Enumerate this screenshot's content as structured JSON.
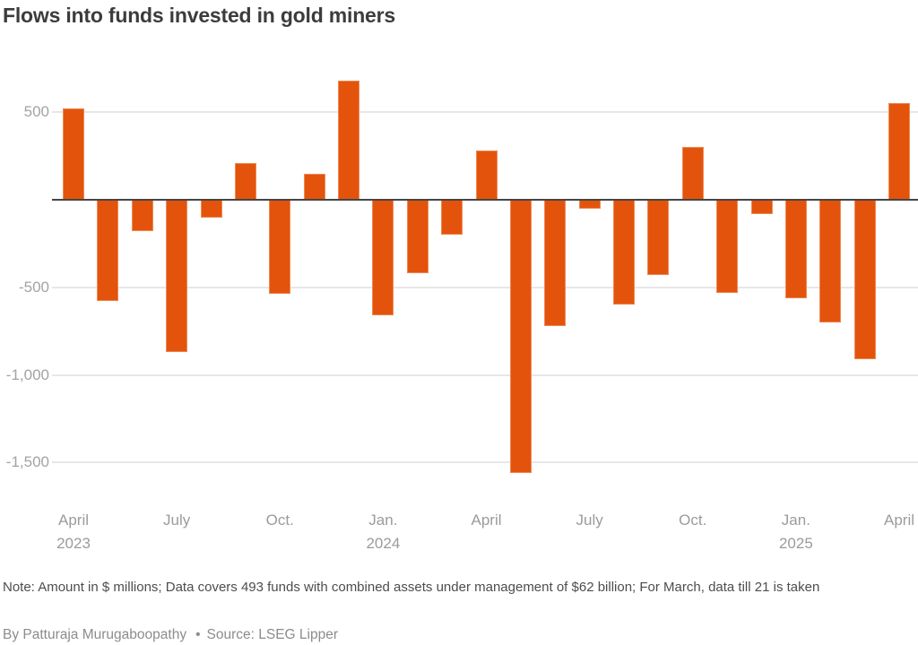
{
  "title": "Flows into funds invested in gold miners",
  "note": "Note: Amount in $ millions; Data covers 493 funds with combined assets under management of $62 billion; For March, data till 21 is taken",
  "credit": {
    "byline": "By Patturaja Murugaboopathy",
    "separator": "•",
    "source": "Source: LSEG Lipper"
  },
  "colors": {
    "bar": "#e4530c",
    "zero_line": "#454545",
    "gridline": "#e7e7e7",
    "title_text": "#3c3c3c",
    "tick_text": "#a3a3a3",
    "note_text": "#4d4d4d",
    "credit_text": "#8c8c8c"
  },
  "chart_data": {
    "type": "bar",
    "title": "Flows into funds invested in gold miners",
    "unit": "$ millions",
    "xlabel": "",
    "ylabel": "",
    "ylim": [
      -1700,
      750
    ],
    "grid": true,
    "legend": false,
    "zero_line": true,
    "categories": [
      "Apr 2023",
      "May 2023",
      "Jun 2023",
      "Jul 2023",
      "Aug 2023",
      "Sep 2023",
      "Oct 2023",
      "Nov 2023",
      "Dec 2023",
      "Jan 2024",
      "Feb 2024",
      "Mar 2024",
      "Apr 2024",
      "May 2024",
      "Jun 2024",
      "Jul 2024",
      "Aug 2024",
      "Sep 2024",
      "Oct 2024",
      "Nov 2024",
      "Dec 2024",
      "Jan 2025",
      "Feb 2025",
      "Mar 2025",
      "Apr 2025"
    ],
    "values": [
      520,
      -580,
      -180,
      -870,
      -100,
      210,
      -535,
      150,
      680,
      -660,
      -420,
      -200,
      280,
      -1560,
      -720,
      -50,
      -600,
      -430,
      300,
      -530,
      -80,
      -560,
      -700,
      -910,
      550
    ],
    "yticks": [
      {
        "value": 500,
        "label": "500"
      },
      {
        "value": -500,
        "label": "-500"
      },
      {
        "value": -1000,
        "label": "-1,000"
      },
      {
        "value": -1500,
        "label": "-1,500"
      }
    ],
    "xticks": [
      {
        "index": 0,
        "line1": "April",
        "line2": "2023"
      },
      {
        "index": 3,
        "line1": "July",
        "line2": ""
      },
      {
        "index": 6,
        "line1": "Oct.",
        "line2": ""
      },
      {
        "index": 9,
        "line1": "Jan.",
        "line2": "2024"
      },
      {
        "index": 12,
        "line1": "April",
        "line2": ""
      },
      {
        "index": 15,
        "line1": "July",
        "line2": ""
      },
      {
        "index": 18,
        "line1": "Oct.",
        "line2": ""
      },
      {
        "index": 21,
        "line1": "Jan.",
        "line2": "2025"
      },
      {
        "index": 24,
        "line1": "April",
        "line2": ""
      }
    ]
  }
}
